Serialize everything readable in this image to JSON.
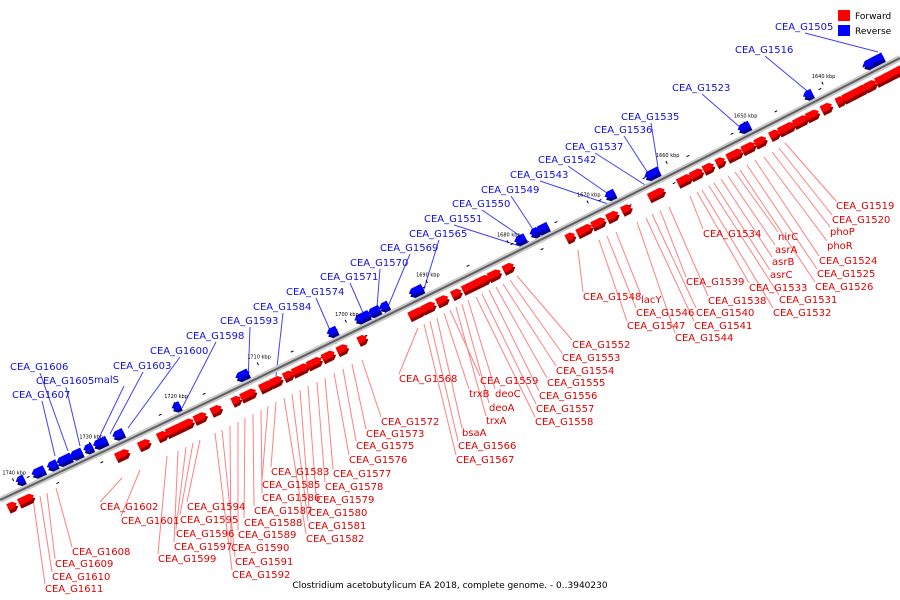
{
  "caption": "Clostridium acetobutylicum EA 2018, complete genome. - 0..3940230",
  "legend": {
    "forward": {
      "label": "Forward",
      "color": "#ff0000"
    },
    "reverse": {
      "label": "Reverse",
      "color": "#0000ff"
    }
  },
  "ticks": [
    "1640 kbp",
    "1650 kbp",
    "1660 kbp",
    "1670 kbp",
    "1680 kbp",
    "1690 kbp",
    "1700 kbp",
    "1710 kbp",
    "1720 kbp",
    "1730 kbp",
    "1740 kbp"
  ],
  "forward_genes": [
    "CEA_G1519",
    "CEA_G1520",
    "phoP",
    "phoR",
    "CEA_G1524",
    "CEA_G1525",
    "CEA_G1526",
    "nirC",
    "asrA",
    "asrB",
    "asrC",
    "CEA_G1531",
    "CEA_G1532",
    "CEA_G1533",
    "CEA_G1534",
    "CEA_G1538",
    "CEA_G1539",
    "CEA_G1540",
    "CEA_G1541",
    "CEA_G1544",
    "lacY",
    "CEA_G1546",
    "CEA_G1547",
    "CEA_G1548",
    "CEA_G1552",
    "CEA_G1553",
    "CEA_G1554",
    "CEA_G1555",
    "CEA_G1556",
    "CEA_G1557",
    "CEA_G1558",
    "deoC",
    "deoA",
    "trxA",
    "CEA_G1559",
    "trxB",
    "bsaA",
    "CEA_G1566",
    "CEA_G1567",
    "CEA_G1568",
    "CEA_G1572",
    "CEA_G1573",
    "CEA_G1575",
    "CEA_G1576",
    "CEA_G1577",
    "CEA_G1578",
    "CEA_G1579",
    "CEA_G1580",
    "CEA_G1581",
    "CEA_G1582",
    "CEA_G1583",
    "CEA_G1585",
    "CEA_G1586",
    "CEA_G1587",
    "CEA_G1588",
    "CEA_G1589",
    "CEA_G1590",
    "CEA_G1591",
    "CEA_G1592",
    "CEA_G1594",
    "CEA_G1595",
    "CEA_G1596",
    "CEA_G1597",
    "CEA_G1599",
    "CEA_G1601",
    "CEA_G1602",
    "CEA_G1608",
    "CEA_G1609",
    "CEA_G1610",
    "CEA_G1611"
  ],
  "reverse_genes": [
    "CEA_G1505",
    "CEA_G1516",
    "CEA_G1523",
    "CEA_G1535",
    "CEA_G1536",
    "CEA_G1537",
    "CEA_G1542",
    "CEA_G1543",
    "CEA_G1549",
    "CEA_G1550",
    "CEA_G1551",
    "CEA_G1565",
    "CEA_G1569",
    "CEA_G1570",
    "CEA_G1571",
    "CEA_G1574",
    "CEA_G1584",
    "CEA_G1593",
    "CEA_G1598",
    "CEA_G1600",
    "CEA_G1603",
    "malS",
    "CEA_G1605",
    "CEA_G1606",
    "CEA_G1607"
  ]
}
